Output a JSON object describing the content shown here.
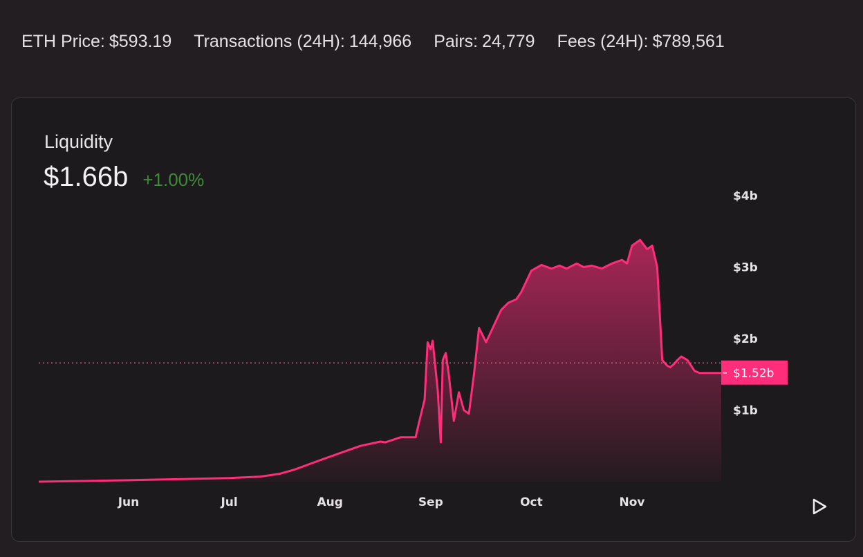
{
  "stats": [
    {
      "label": "ETH Price:",
      "value": "$593.19"
    },
    {
      "label": "Transactions (24H):",
      "value": "144,966"
    },
    {
      "label": "Pairs:",
      "value": "24,779"
    },
    {
      "label": "Fees (24H):",
      "value": "$789,561"
    }
  ],
  "panel": {
    "title": "Liquidity",
    "value": "$1.66b",
    "change": "+1.00%"
  },
  "colors": {
    "accent": "#ff2d7a",
    "change_positive": "#3e8a37",
    "background": "#221e21"
  },
  "icons": {
    "play": "play-icon"
  },
  "chart_data": {
    "type": "area",
    "title": "",
    "xlabel": "",
    "ylabel": "",
    "x_ticks": [
      "Jun",
      "Jul",
      "Aug",
      "Sep",
      "Oct",
      "Nov"
    ],
    "y_ticks": [
      "$4b",
      "$3b",
      "$2b",
      "$1b"
    ],
    "ylim": [
      0,
      4
    ],
    "y_unit": "billions USD",
    "reference_line": {
      "value": 1.66,
      "style": "dotted"
    },
    "current_label": {
      "value": 1.52,
      "text": "$1.52b"
    },
    "grid": false,
    "series": [
      {
        "x_month_position": [
          0,
          1,
          2,
          2.3,
          2.5,
          2.65,
          2.9,
          3.3,
          3.5,
          3.55,
          3.7,
          3.85,
          3.88,
          3.94,
          3.97,
          4.0,
          4.02,
          4.05,
          4.07,
          4.1,
          4.12,
          4.15,
          4.18,
          4.23,
          4.28,
          4.33,
          4.38,
          4.43,
          4.48,
          4.55,
          4.6,
          4.65,
          4.7,
          4.77,
          4.85,
          4.9,
          5.0,
          5.1,
          5.2,
          5.28,
          5.35,
          5.45,
          5.52,
          5.6,
          5.7,
          5.8,
          5.9,
          5.95,
          6.0,
          6.08,
          6.15,
          6.2,
          6.25,
          6.3,
          6.35,
          6.38,
          6.42,
          6.45,
          6.49,
          6.55,
          6.62,
          6.67,
          6.72,
          6.77
        ],
        "values": [
          0,
          0.02,
          0.05,
          0.07,
          0.11,
          0.17,
          0.3,
          0.5,
          0.56,
          0.55,
          0.62,
          0.62,
          0.8,
          1.15,
          1.95,
          1.85,
          1.97,
          1.55,
          1.28,
          0.55,
          1.7,
          1.8,
          1.5,
          0.85,
          1.25,
          1.0,
          0.95,
          1.5,
          2.15,
          1.95,
          2.1,
          2.25,
          2.4,
          2.5,
          2.55,
          2.65,
          2.95,
          3.03,
          2.98,
          3.02,
          2.98,
          3.05,
          3.0,
          3.02,
          2.98,
          3.05,
          3.1,
          3.05,
          3.3,
          3.38,
          3.25,
          3.3,
          3.0,
          1.7,
          1.62,
          1.6,
          1.65,
          1.7,
          1.75,
          1.7,
          1.55,
          1.52,
          1.52,
          1.52
        ]
      }
    ]
  }
}
